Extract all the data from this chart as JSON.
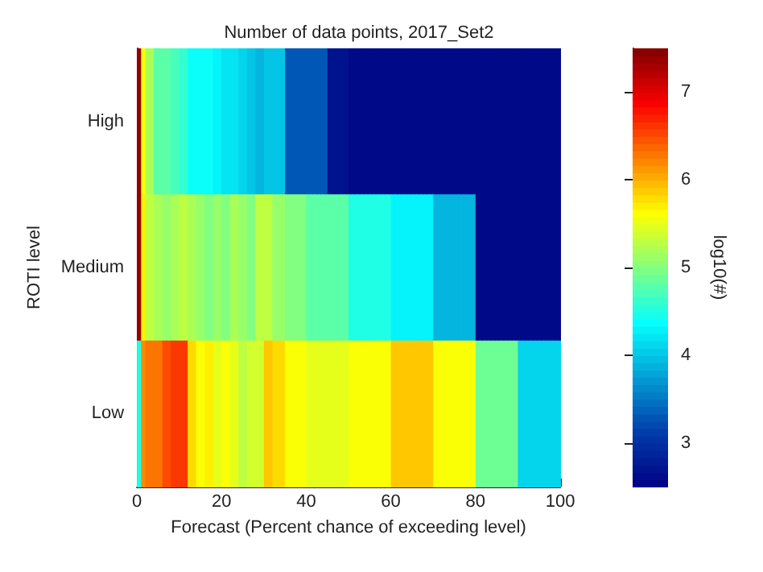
{
  "chart_data": {
    "type": "heatmap",
    "title": "Number of data points, 2017_Set2",
    "xlabel": "Forecast (Percent chance of exceeding level)",
    "ylabel": "ROTI level",
    "clabel": "log10(#)",
    "x": [
      0.5,
      1.5,
      2.5,
      3.5,
      4.5,
      5.5,
      6.5,
      7.5,
      8.5,
      9.5,
      10.5,
      11.5,
      12.5,
      13.5,
      14.5,
      15.5,
      16.5,
      17.5,
      18.5,
      19.5,
      20.5,
      21.5,
      22.5,
      23.5,
      24.5,
      25.5,
      26.5,
      27.5,
      28.5,
      29.5,
      30.5,
      31.5,
      32.5,
      33.5,
      34.5,
      35.5,
      36.5,
      37.5,
      38.5,
      39.5,
      40.5,
      41.5,
      42.5,
      43.5,
      44.5,
      45.5,
      46.5,
      47.5,
      48.5,
      49.5,
      50.5,
      51.5,
      52.5,
      53.5,
      54.5,
      55.5,
      56.5,
      57.5,
      58.5,
      59.5,
      60.5,
      61.5,
      62.5,
      63.5,
      64.5,
      65.5,
      66.5,
      67.5,
      68.5,
      69.5,
      70.5,
      71.5,
      72.5,
      73.5,
      74.5,
      75.5,
      76.5,
      77.5,
      78.5,
      79.5,
      80.5,
      81.5,
      82.5,
      83.5,
      84.5,
      85.5,
      86.5,
      87.5,
      88.5,
      89.5,
      90.5,
      91.5,
      92.5,
      93.5,
      94.5,
      95.5,
      96.5,
      97.5,
      98.5,
      99.5
    ],
    "xlim": [
      0,
      100
    ],
    "xticks": [
      0,
      20,
      40,
      60,
      80,
      100
    ],
    "y_categories": [
      "High",
      "Medium",
      "Low"
    ],
    "cells": [
      [
        7.4,
        5.6,
        5.2,
        5.2,
        4.8,
        4.8,
        4.8,
        4.8,
        4.7,
        4.7,
        4.6,
        4.6,
        4.4,
        4.4,
        4.4,
        4.4,
        4.4,
        4.4,
        4.3,
        4.3,
        4.2,
        4.2,
        4.2,
        4.2,
        4.1,
        4.1,
        4.0,
        4.0,
        3.9,
        3.9,
        4.0,
        4.0,
        4.0,
        4.0,
        4.0,
        3.3,
        3.3,
        3.3,
        3.3,
        3.3,
        3.3,
        3.3,
        3.3,
        3.3,
        3.3,
        2.7,
        2.7,
        2.7,
        2.7,
        2.7,
        2.6,
        2.6,
        2.6,
        2.6,
        2.6,
        2.6,
        2.6,
        2.6,
        2.6,
        2.6,
        2.6,
        2.6,
        2.6,
        2.6,
        2.6,
        2.6,
        2.6,
        2.6,
        2.6,
        2.6,
        2.6,
        2.6,
        2.6,
        2.6,
        2.6,
        2.6,
        2.6,
        2.6,
        2.6,
        2.6,
        2.6,
        2.6,
        2.6,
        2.6,
        2.6,
        2.6,
        2.6,
        2.6,
        2.6,
        2.6,
        2.6,
        2.6,
        2.6,
        2.6,
        2.6,
        2.6,
        2.6,
        2.6,
        2.6,
        2.6
      ],
      [
        7.4,
        5.7,
        5.3,
        5.3,
        5.2,
        5.2,
        5.1,
        5.1,
        5.2,
        5.2,
        5.3,
        5.3,
        5.2,
        5.2,
        5.1,
        5.1,
        5.0,
        5.0,
        5.1,
        5.1,
        5.0,
        5.0,
        5.2,
        5.2,
        5.1,
        5.1,
        5.0,
        5.0,
        5.3,
        5.3,
        5.3,
        5.3,
        5.1,
        5.1,
        5.1,
        5.0,
        5.0,
        5.0,
        5.0,
        5.0,
        4.8,
        4.8,
        4.8,
        4.8,
        4.8,
        4.8,
        4.8,
        4.8,
        4.8,
        4.8,
        4.5,
        4.5,
        4.5,
        4.5,
        4.5,
        4.5,
        4.5,
        4.5,
        4.5,
        4.5,
        4.3,
        4.3,
        4.3,
        4.3,
        4.3,
        4.3,
        4.3,
        4.3,
        4.3,
        4.3,
        3.9,
        3.9,
        3.9,
        3.9,
        3.9,
        3.9,
        3.9,
        3.9,
        3.9,
        3.9,
        2.6,
        2.6,
        2.6,
        2.6,
        2.6,
        2.6,
        2.6,
        2.6,
        2.6,
        2.6,
        2.6,
        2.6,
        2.6,
        2.6,
        2.6,
        2.6,
        2.6,
        2.6,
        2.6,
        2.6
      ],
      [
        4.5,
        6.2,
        6.3,
        6.3,
        6.3,
        6.3,
        6.5,
        6.5,
        6.6,
        6.6,
        6.6,
        6.6,
        5.8,
        5.8,
        5.6,
        5.6,
        5.7,
        5.7,
        5.5,
        5.5,
        5.6,
        5.6,
        5.5,
        5.5,
        5.3,
        5.3,
        5.4,
        5.4,
        5.4,
        5.4,
        5.9,
        5.9,
        5.8,
        5.8,
        5.8,
        5.6,
        5.6,
        5.6,
        5.6,
        5.6,
        5.5,
        5.5,
        5.5,
        5.5,
        5.5,
        5.5,
        5.5,
        5.5,
        5.5,
        5.5,
        5.6,
        5.6,
        5.6,
        5.6,
        5.6,
        5.6,
        5.6,
        5.6,
        5.6,
        5.6,
        5.9,
        5.9,
        5.9,
        5.9,
        5.9,
        5.9,
        5.9,
        5.9,
        5.9,
        5.9,
        5.6,
        5.6,
        5.6,
        5.6,
        5.6,
        5.6,
        5.6,
        5.6,
        5.6,
        5.6,
        4.9,
        4.9,
        4.9,
        4.9,
        4.9,
        4.9,
        4.9,
        4.9,
        4.9,
        4.9,
        4.1,
        4.1,
        4.1,
        4.1,
        4.1,
        4.1,
        4.1,
        4.1,
        4.1,
        4.1
      ]
    ],
    "clim": [
      2.5,
      7.5
    ],
    "cticks": [
      3,
      4,
      5,
      6,
      7
    ]
  }
}
